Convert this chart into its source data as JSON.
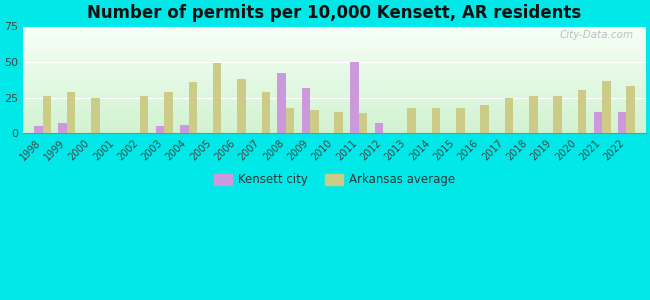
{
  "title": "Number of permits per 10,000 Kensett, AR residents",
  "years": [
    1998,
    1999,
    2000,
    2001,
    2002,
    2003,
    2004,
    2005,
    2006,
    2007,
    2008,
    2009,
    2010,
    2011,
    2012,
    2013,
    2014,
    2015,
    2016,
    2017,
    2018,
    2019,
    2020,
    2021,
    2022
  ],
  "kensett": [
    5,
    7,
    0,
    0,
    0,
    5,
    6,
    0,
    0,
    0,
    42,
    32,
    0,
    50,
    7,
    0,
    0,
    0,
    0,
    0,
    0,
    0,
    0,
    15,
    15
  ],
  "arkansas": [
    26,
    29,
    25,
    0,
    26,
    29,
    36,
    49,
    38,
    29,
    18,
    16,
    15,
    14,
    0,
    18,
    18,
    18,
    20,
    25,
    26,
    26,
    30,
    37,
    33
  ],
  "kensett_color": "#cc99dd",
  "arkansas_color": "#cccc88",
  "bg_color": "#00e8e8",
  "ylim": [
    0,
    75
  ],
  "yticks": [
    0,
    25,
    50,
    75
  ],
  "bar_width": 0.35,
  "legend_kensett": "Kensett city",
  "legend_arkansas": "Arkansas average",
  "watermark": "City-Data.com",
  "title_fontsize": 12,
  "tick_fontsize": 7,
  "ytick_fontsize": 8
}
